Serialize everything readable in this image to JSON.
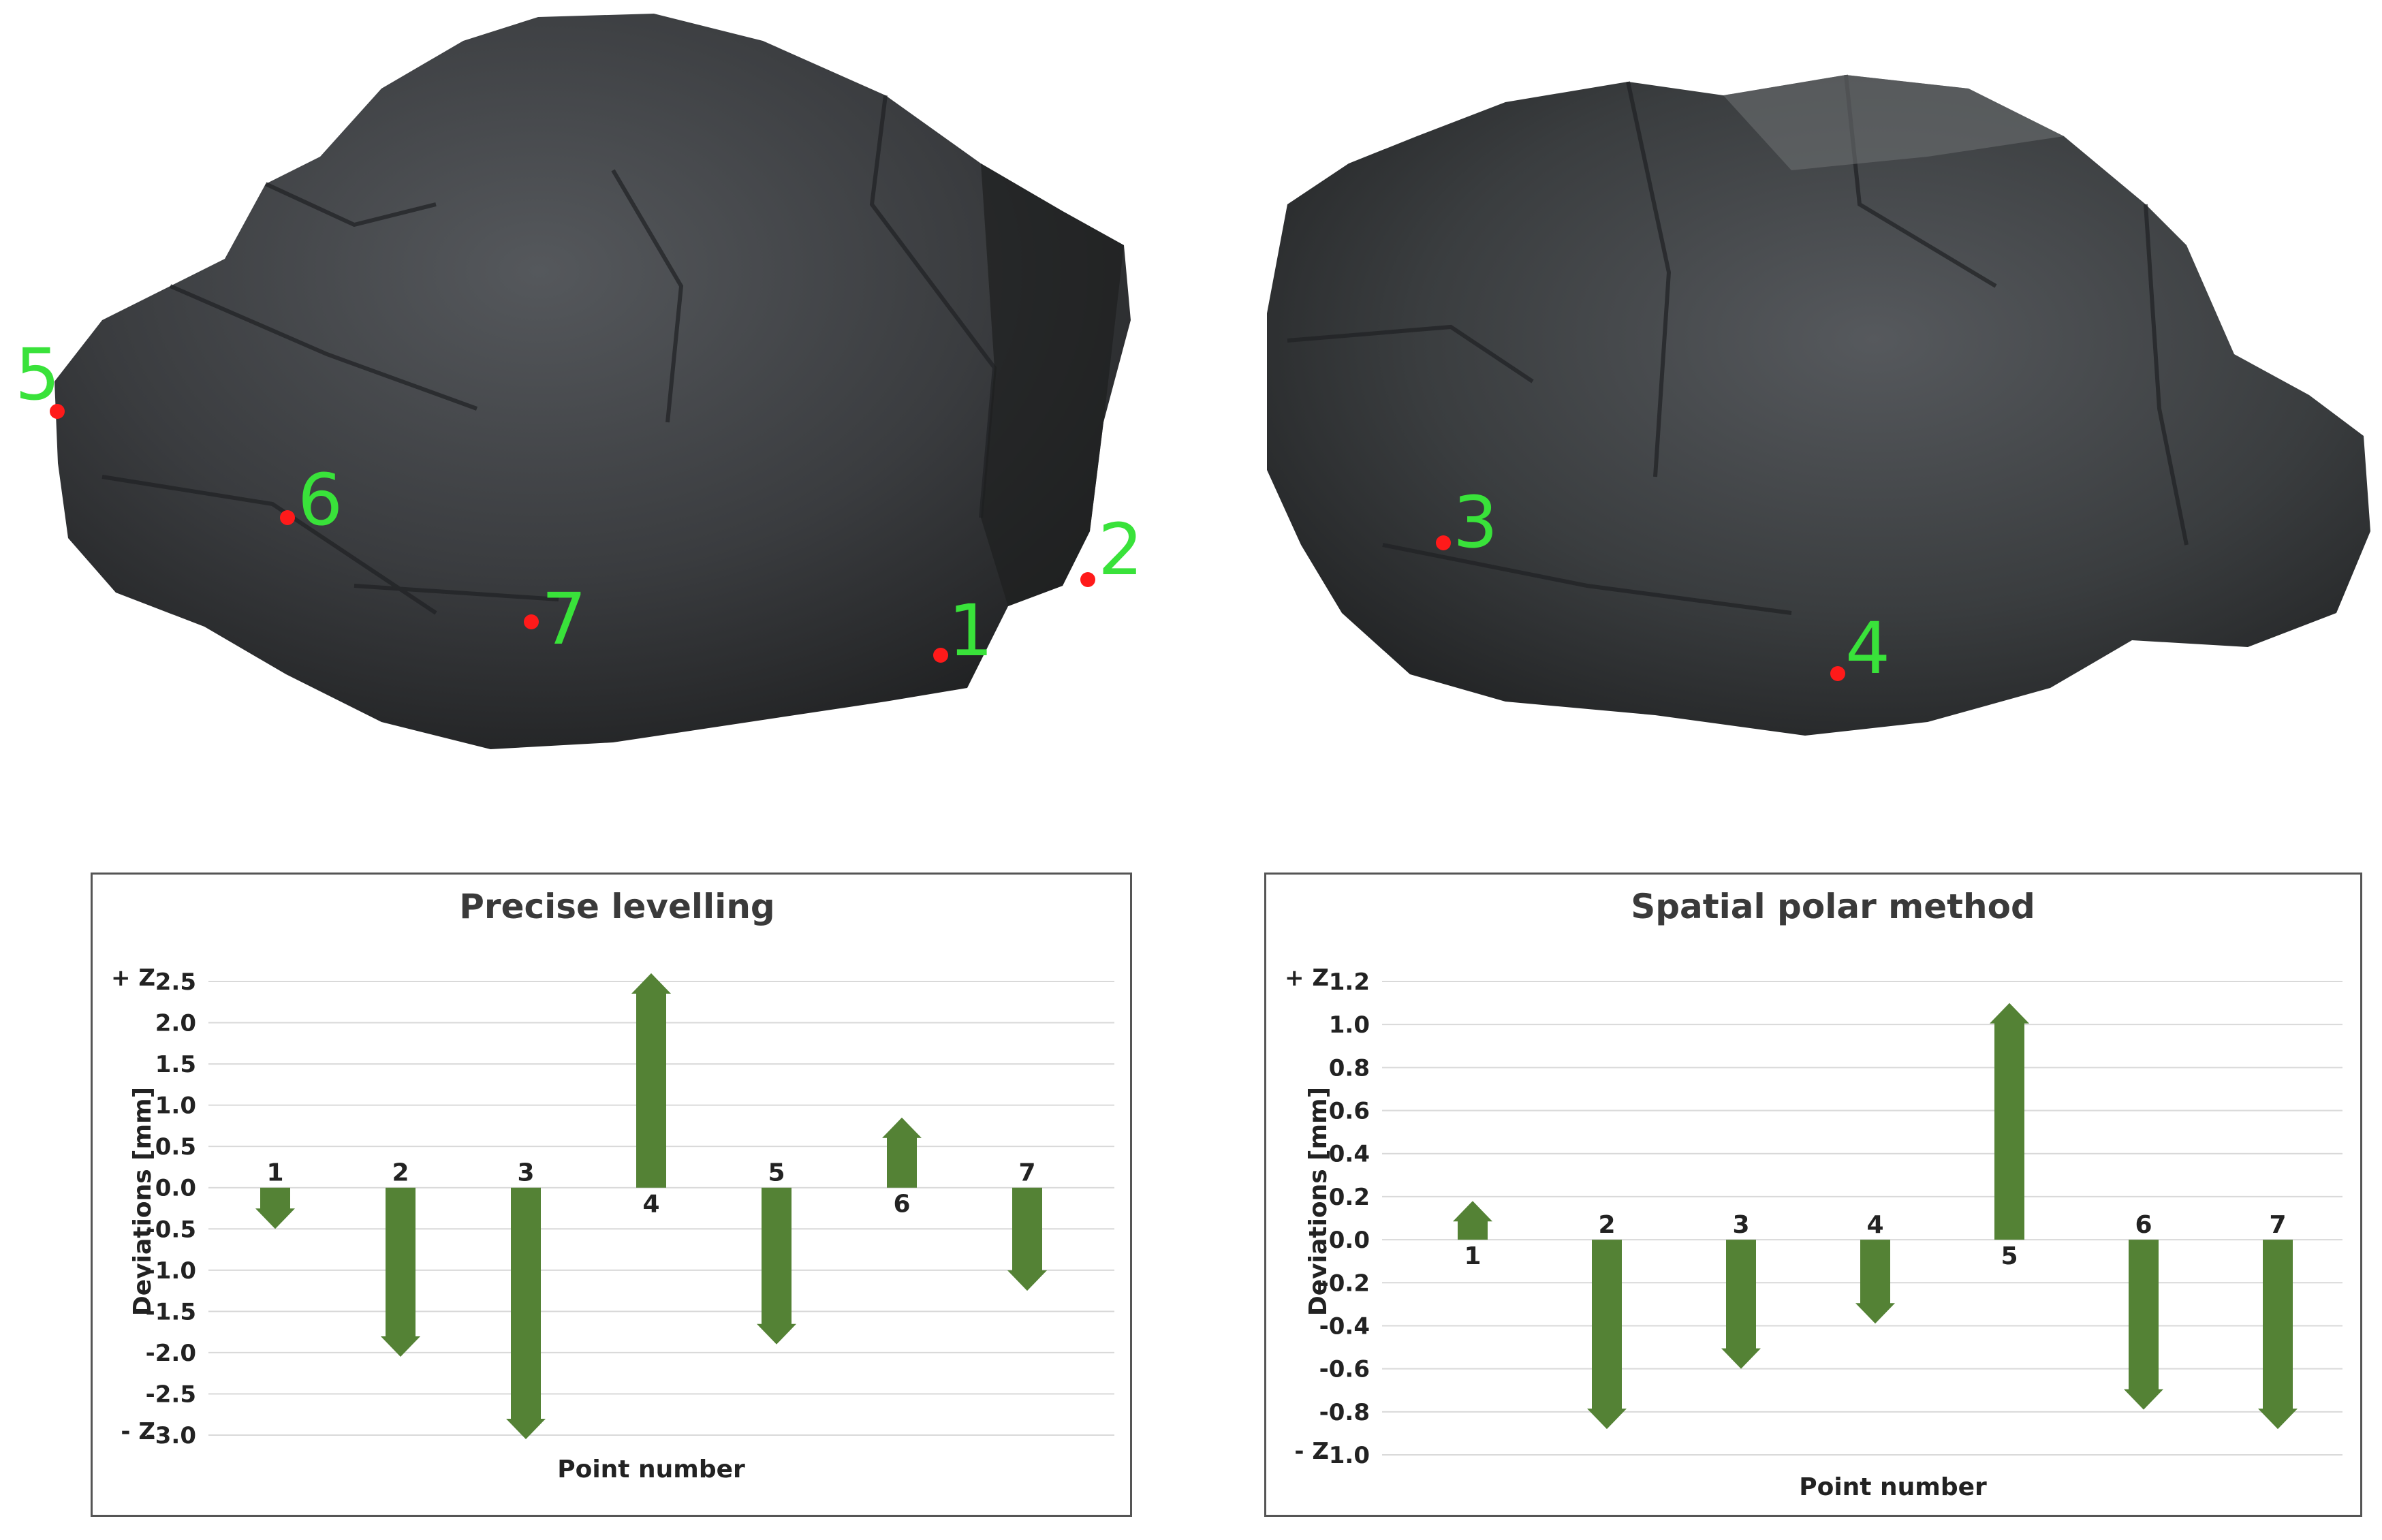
{
  "photos": [
    {
      "name": "left-rock-photo",
      "points": [
        {
          "label": "5"
        },
        {
          "label": "6"
        },
        {
          "label": "7"
        },
        {
          "label": "1"
        },
        {
          "label": "2"
        }
      ]
    },
    {
      "name": "right-rock-photo",
      "points": [
        {
          "label": "3"
        },
        {
          "label": "4"
        }
      ]
    }
  ],
  "colors": {
    "arrow": "#548235",
    "point_marker": "#ff1a1a",
    "point_label": "#39e23a",
    "gridline": "#d9d9d9",
    "frame": "#555555"
  },
  "chart_data": [
    {
      "type": "bar",
      "title": "Precise levelling",
      "xlabel": "Point number",
      "ylabel": "Deviations [mm]",
      "y_top_marker": "+ Z",
      "y_bottom_marker": "- Z",
      "ylim": [
        -3.0,
        2.5
      ],
      "yticks": [
        "2.5",
        "2.0",
        "1.5",
        "1.0",
        "0.5",
        "0.0",
        "-0.5",
        "-1.0",
        "-1.5",
        "-2.0",
        "-2.5",
        "-3.0"
      ],
      "categories": [
        "1",
        "2",
        "3",
        "4",
        "5",
        "6",
        "7"
      ],
      "values": [
        -0.5,
        -2.05,
        -3.05,
        2.6,
        -1.9,
        0.85,
        -1.25
      ],
      "grid": true
    },
    {
      "type": "bar",
      "title": "Spatial polar method",
      "xlabel": "Point number",
      "ylabel": "Deviations [mm]",
      "y_top_marker": "+ Z",
      "y_bottom_marker": "- Z",
      "ylim": [
        -1.0,
        1.2
      ],
      "yticks": [
        "1.2",
        "1.0",
        "0.8",
        "0.6",
        "0.4",
        "0.2",
        "0.0",
        "-0.2",
        "-0.4",
        "-0.6",
        "-0.8",
        "-1.0"
      ],
      "categories": [
        "1",
        "2",
        "3",
        "4",
        "5",
        "6",
        "7"
      ],
      "values": [
        0.18,
        -0.88,
        -0.6,
        -0.39,
        1.1,
        -0.79,
        -0.88
      ],
      "grid": true
    }
  ]
}
